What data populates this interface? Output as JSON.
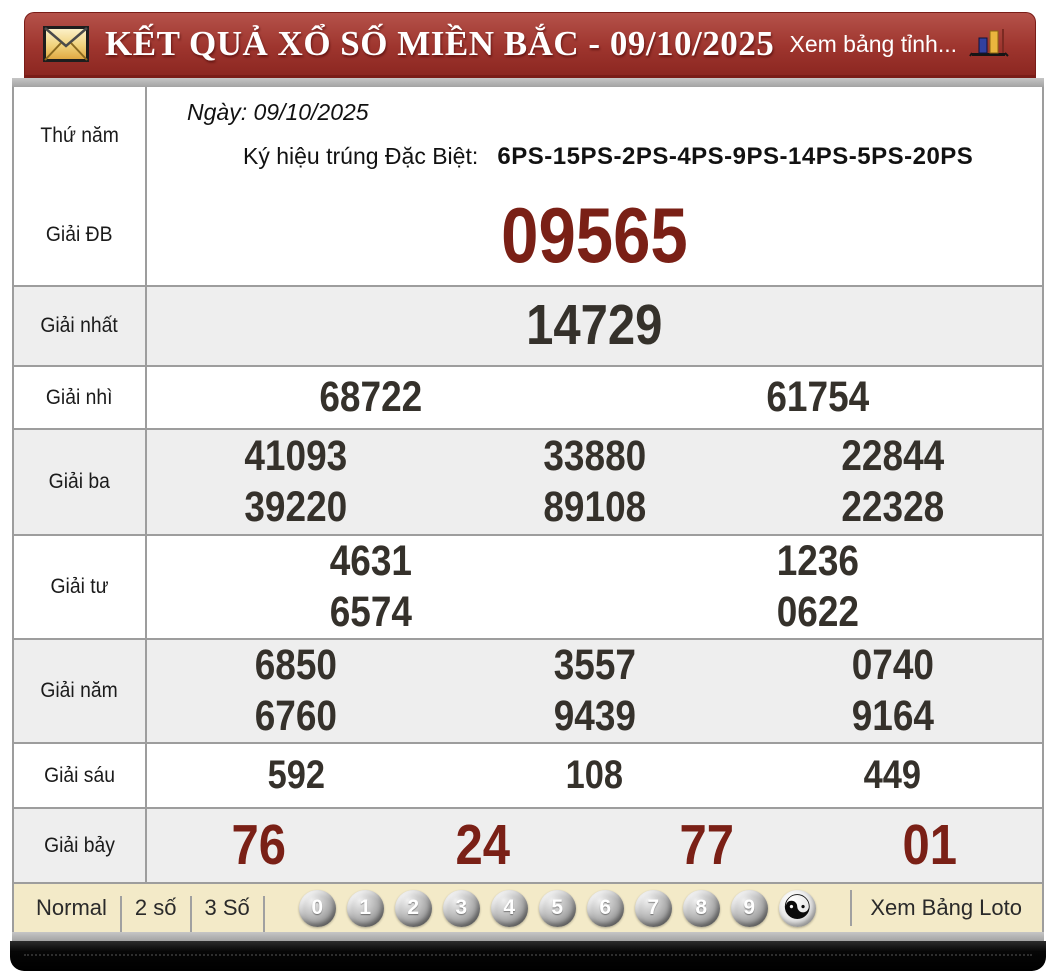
{
  "header": {
    "title": "KẾT QUẢ XỔ SỐ MIỀN BẮC - 09/10/2025",
    "right_link": "Xem bảng tỉnh..."
  },
  "info": {
    "weekday": "Thứ năm",
    "date_label": "Ngày: 09/10/2025",
    "sign_label": "Ký hiệu trúng Đặc Biệt:",
    "sign_value": "6PS-15PS-2PS-4PS-9PS-14PS-5PS-20PS"
  },
  "prizes": [
    {
      "label": "Giải ĐB",
      "rows": [
        [
          "09565"
        ]
      ]
    },
    {
      "label": "Giải nhất",
      "rows": [
        [
          "14729"
        ]
      ]
    },
    {
      "label": "Giải nhì",
      "rows": [
        [
          "68722",
          "61754"
        ]
      ]
    },
    {
      "label": "Giải ba",
      "rows": [
        [
          "41093",
          "33880",
          "22844"
        ],
        [
          "39220",
          "89108",
          "22328"
        ]
      ]
    },
    {
      "label": "Giải tư",
      "rows": [
        [
          "4631",
          "1236"
        ],
        [
          "6574",
          "0622"
        ]
      ]
    },
    {
      "label": "Giải năm",
      "rows": [
        [
          "6850",
          "3557",
          "0740"
        ],
        [
          "6760",
          "9439",
          "9164"
        ]
      ]
    },
    {
      "label": "Giải sáu",
      "rows": [
        [
          "592",
          "108",
          "449"
        ]
      ]
    },
    {
      "label": "Giải bảy",
      "rows": [
        [
          "76",
          "24",
          "77",
          "01"
        ]
      ]
    }
  ],
  "footer": {
    "modes": [
      "Normal",
      "2 số",
      "3 Số"
    ],
    "balls": [
      "0",
      "1",
      "2",
      "3",
      "4",
      "5",
      "6",
      "7",
      "8",
      "9"
    ],
    "yinyang": "☯",
    "loto_link": "Xem Bảng Loto"
  },
  "colors": {
    "header_red": "#9e352e",
    "prize_red": "#7a2016",
    "footer_cream": "#f3eac8",
    "row_alt": "#eeeeee"
  }
}
